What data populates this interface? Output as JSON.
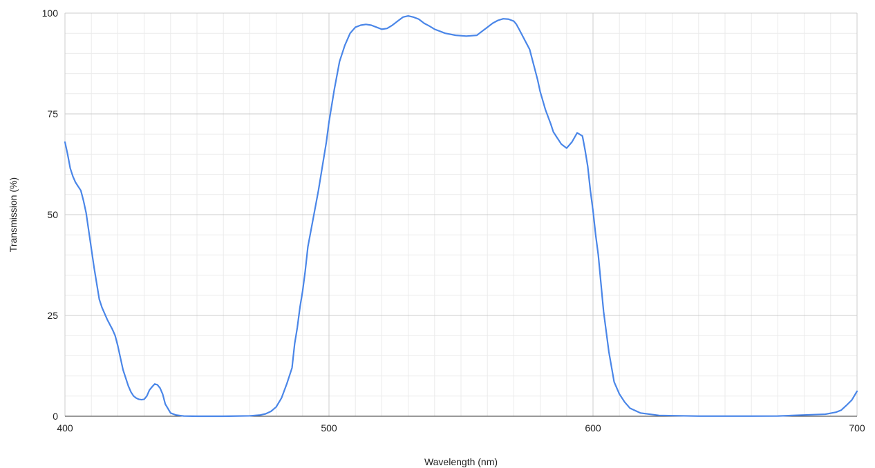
{
  "chart_data": {
    "type": "line",
    "title": "",
    "xlabel": "Wavelength (nm)",
    "ylabel": "Transmission (%)",
    "xlim": [
      400,
      700
    ],
    "ylim": [
      0,
      100
    ],
    "x_ticks": [
      "400",
      "500",
      "600",
      "700"
    ],
    "y_ticks": [
      "0",
      "25",
      "50",
      "75",
      "100"
    ],
    "grid": true,
    "legend": "none",
    "series": [
      {
        "color": "#4a86e8",
        "x": [
          400,
          401,
          402,
          403,
          404,
          405,
          406,
          407,
          408,
          409,
          410,
          411,
          412,
          413,
          414,
          416,
          418,
          419,
          420,
          421,
          422,
          423,
          424,
          425,
          426,
          427,
          428,
          429,
          430,
          431,
          432,
          433,
          434,
          435,
          436,
          437,
          438,
          440,
          442,
          445,
          450,
          460,
          470,
          474,
          476,
          478,
          480,
          482,
          484,
          486,
          487,
          488,
          489,
          490,
          491,
          492,
          494,
          496,
          498,
          499,
          500,
          502,
          504,
          506,
          508,
          510,
          512,
          514,
          516,
          518,
          520,
          522,
          524,
          526,
          528,
          530,
          532,
          534,
          536,
          538,
          540,
          544,
          548,
          552,
          556,
          558,
          560,
          562,
          564,
          566,
          568,
          570,
          571,
          572,
          574,
          576,
          577,
          578,
          579,
          580,
          582,
          584,
          585,
          586,
          588,
          590,
          592,
          594,
          596,
          597,
          598,
          599,
          600,
          601,
          602,
          603,
          604,
          605,
          606,
          608,
          610,
          612,
          614,
          618,
          625,
          640,
          660,
          670,
          680,
          688,
          692,
          694,
          696,
          698,
          700
        ],
        "values": [
          68,
          65,
          61.5,
          59.5,
          58,
          57,
          56,
          53.5,
          50.5,
          46,
          41.5,
          37,
          33,
          29,
          27,
          24,
          21.5,
          20,
          17.5,
          14.5,
          11.5,
          9.5,
          7.5,
          6,
          5,
          4.5,
          4.2,
          4.1,
          4.2,
          5,
          6.5,
          7.3,
          8,
          7.8,
          7,
          5.5,
          3,
          0.8,
          0.3,
          0.05,
          0,
          0,
          0.1,
          0.3,
          0.6,
          1.2,
          2.3,
          4.5,
          8,
          12,
          18,
          22,
          27,
          31,
          36,
          42,
          49,
          56,
          64,
          68,
          73,
          81,
          88,
          92,
          95,
          96.5,
          97,
          97.2,
          97,
          96.5,
          96,
          96.2,
          97,
          98,
          99,
          99.3,
          99,
          98.5,
          97.5,
          96.8,
          96,
          95,
          94.5,
          94.3,
          94.5,
          95.5,
          96.5,
          97.5,
          98.2,
          98.6,
          98.5,
          98,
          97.2,
          96,
          93.5,
          91,
          88.5,
          86,
          83.5,
          80.5,
          76,
          72.5,
          70.5,
          69.5,
          67.5,
          66.5,
          68,
          70.3,
          69.5,
          66,
          62,
          56,
          51,
          45,
          40,
          33,
          26,
          21,
          16,
          8.5,
          5.5,
          3.5,
          2,
          0.8,
          0.2,
          0.03,
          0.03,
          0.05,
          0.3,
          0.5,
          1,
          1.5,
          2.7,
          4,
          6.2
        ]
      }
    ]
  }
}
